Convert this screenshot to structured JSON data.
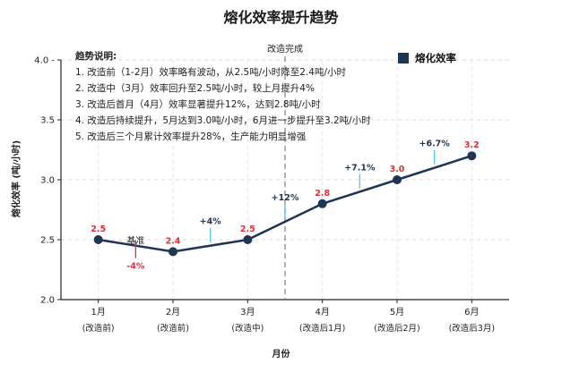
{
  "title": "熔化效率提升趋势",
  "legend": {
    "label": "熔化效率",
    "color": "#1f3553"
  },
  "trend_notes": {
    "title": "趋势说明:",
    "items": [
      "1. 改造前（1-2月）效率略有波动，从2.5吨/小时降至2.4吨/小时",
      "2. 改造中（3月）效率回升至2.5吨/小时，较上月提升4%",
      "3. 改造后首月（4月）效率显著提升12%，达到2.8吨/小时",
      "4. 改造后持续提升，5月达到3.0吨/小时，6月进一步提升至3.2吨/小时",
      "5. 改造后三个月累计效率提升28%，生产能力明显增强"
    ]
  },
  "colors": {
    "line": "#1f3553",
    "value_label": "#d9303a",
    "pct_bar": "#5bc0eb",
    "neg": "#d9303a"
  },
  "chart_data": {
    "type": "line",
    "title": "熔化效率提升趋势",
    "xlabel": "月份",
    "ylabel": "熔化效率 (吨/小时)",
    "categories": [
      "1月",
      "2月",
      "3月",
      "4月",
      "5月",
      "6月"
    ],
    "category_sublabels": [
      "(改造前)",
      "(改造前)",
      "(改造中)",
      "(改造后1月)",
      "(改造后2月)",
      "(改造后3月)"
    ],
    "series": [
      {
        "name": "熔化效率",
        "values": [
          2.5,
          2.4,
          2.5,
          2.8,
          3.0,
          3.2
        ]
      }
    ],
    "value_labels": [
      "2.5",
      "2.4",
      "2.5",
      "2.8",
      "3.0",
      "3.2"
    ],
    "ylim": [
      2.0,
      4.0
    ],
    "yticks": [
      2.0,
      2.5,
      3.0,
      3.5,
      4.0
    ],
    "ytick_labels": [
      "2.0",
      "2.5",
      "3.0",
      "3.5",
      "4.0 -"
    ],
    "grid": true,
    "baseline_label": "基准",
    "changes": [
      {
        "label": "-4%",
        "negative": true
      },
      {
        "label": "+4%",
        "negative": false
      },
      {
        "label": "+12%",
        "negative": false
      },
      {
        "label": "+7.1%",
        "negative": false
      },
      {
        "label": "+6.7%",
        "negative": false
      }
    ],
    "annotation": {
      "label": "改造完成",
      "after_index": 2
    }
  }
}
